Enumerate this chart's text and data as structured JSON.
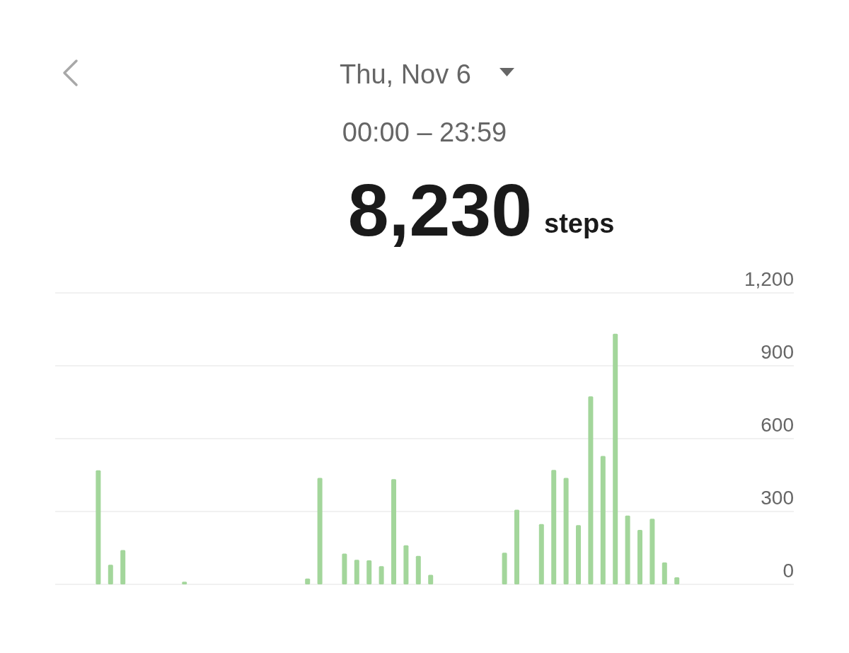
{
  "chart_data": {
    "type": "bar",
    "title": "Thu, Nov 6",
    "subtitle": "00:00 – 23:59",
    "annotations": [
      "8,230",
      "steps"
    ],
    "categories": [
      null,
      null,
      null,
      null,
      null,
      null,
      null,
      null,
      null,
      null,
      null,
      null,
      null,
      null,
      null,
      null,
      null,
      null,
      null,
      null,
      null,
      null,
      null,
      null,
      null,
      null,
      null,
      null,
      null,
      null,
      null,
      null,
      null,
      null,
      null,
      null,
      null,
      null,
      null,
      null,
      null,
      null,
      null,
      null,
      null,
      null,
      null,
      null,
      null,
      null,
      null,
      null,
      null,
      null,
      null,
      null,
      null,
      null,
      null,
      null
    ],
    "values": [
      null,
      null,
      null,
      470,
      81,
      141,
      null,
      null,
      null,
      null,
      11,
      null,
      null,
      null,
      null,
      null,
      null,
      null,
      null,
      null,
      24,
      438,
      null,
      127,
      101,
      99,
      75,
      433,
      161,
      117,
      39,
      null,
      null,
      null,
      null,
      null,
      130,
      307,
      null,
      248,
      471,
      438,
      244,
      774,
      529,
      1032,
      283,
      224,
      270,
      90,
      29,
      null,
      null,
      null,
      null,
      null,
      null,
      null,
      null,
      null
    ],
    "color": "#a3d69b",
    "ylim": [
      0,
      1200
    ],
    "yticks": [
      0,
      300,
      600,
      900,
      {
        "value": 1200,
        "label": "1,200"
      }
    ],
    "grid": "y",
    "tick_labels": "y"
  }
}
